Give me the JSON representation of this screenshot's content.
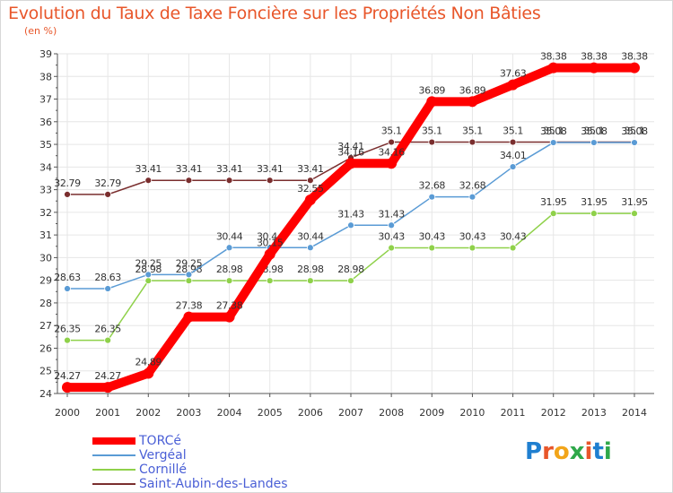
{
  "title": "Evolution du Taux de Taxe Foncière sur les Propriétés Non Bâties",
  "unit_label": "(en %)",
  "logo": {
    "letters": [
      "P",
      "r",
      "o",
      "x",
      "i",
      "t",
      "i"
    ],
    "colors": [
      "#1f7fd0",
      "#e8562a",
      "#f2a51a",
      "#2fa84a",
      "#e8562a",
      "#1f7fd0",
      "#2fa84a"
    ]
  },
  "chart_data": {
    "type": "line",
    "title": "Evolution du Taux de Taxe Foncière sur les Propriétés Non Bâties",
    "ylabel": "(en %)",
    "xlabel": "",
    "ylim": [
      24,
      39
    ],
    "yticks": [
      "24",
      "25",
      "26",
      "27",
      "28",
      "29",
      "30",
      "31",
      "32",
      "33",
      "34",
      "35",
      "36",
      "37",
      "38",
      "39"
    ],
    "categories": [
      "2000",
      "2001",
      "2002",
      "2003",
      "2004",
      "2005",
      "2006",
      "2007",
      "2008",
      "2009",
      "2010",
      "2011",
      "2012",
      "2013",
      "2014"
    ],
    "legend_position": "bottom-left",
    "series": [
      {
        "name": "Saint-Aubin-des-Landes",
        "color": "#7a2e2e",
        "values": [
          32.79,
          32.79,
          33.41,
          33.41,
          33.41,
          33.41,
          33.41,
          34.41,
          35.1,
          35.1,
          35.1,
          35.1,
          35.1,
          35.1,
          35.1
        ],
        "labels": [
          "32.79",
          "32.79",
          "33.41",
          "33.41",
          "33.41",
          "33.41",
          "33.41",
          "34.41",
          "35.1",
          "35.1",
          "35.1",
          "35.1",
          "35.1",
          "35.1",
          "35.1"
        ]
      },
      {
        "name": "Cornillé",
        "color": "#8fd14a",
        "values": [
          26.35,
          26.35,
          28.98,
          28.98,
          28.98,
          28.98,
          28.98,
          28.98,
          30.43,
          30.43,
          30.43,
          30.43,
          31.95,
          31.95,
          31.95
        ],
        "labels": [
          "26.35",
          "26.35",
          "28.98",
          "28.98",
          "28.98",
          "28.98",
          "28.98",
          "28.98",
          "30.43",
          "30.43",
          "30.43",
          "30.43",
          "31.95",
          "31.95",
          "31.95"
        ]
      },
      {
        "name": "Vergéal",
        "color": "#5a9bd5",
        "values": [
          28.63,
          28.63,
          29.25,
          29.25,
          30.44,
          30.44,
          30.44,
          31.43,
          31.43,
          32.68,
          32.68,
          34.01,
          35.08,
          35.08,
          35.08
        ],
        "labels": [
          "28.63",
          "28.63",
          "29.25",
          "29.25",
          "30.44",
          "30.44",
          "30.44",
          "31.43",
          "31.43",
          "32.68",
          "32.68",
          "34.01",
          "35.08",
          "35.08",
          "35.08"
        ]
      },
      {
        "name": "TORCé",
        "color": "#ff0000",
        "values": [
          24.27,
          24.27,
          24.89,
          27.38,
          27.38,
          30.15,
          32.55,
          34.16,
          34.16,
          36.89,
          36.89,
          37.63,
          38.38,
          38.38,
          38.38
        ],
        "labels": [
          "24.27",
          "24.27",
          "24.89",
          "27.38",
          "27.38",
          "30.15",
          "32.55",
          "34.16",
          "34.16",
          "36.89",
          "36.89",
          "37.63",
          "38.38",
          "38.38",
          "38.38"
        ]
      }
    ]
  },
  "legend": [
    {
      "name": "TORCé",
      "color": "#ff0000",
      "thick": true
    },
    {
      "name": "Vergéal",
      "color": "#5a9bd5",
      "thick": false
    },
    {
      "name": "Cornillé",
      "color": "#8fd14a",
      "thick": false
    },
    {
      "name": "Saint-Aubin-des-Landes",
      "color": "#7a2e2e",
      "thick": false
    }
  ]
}
